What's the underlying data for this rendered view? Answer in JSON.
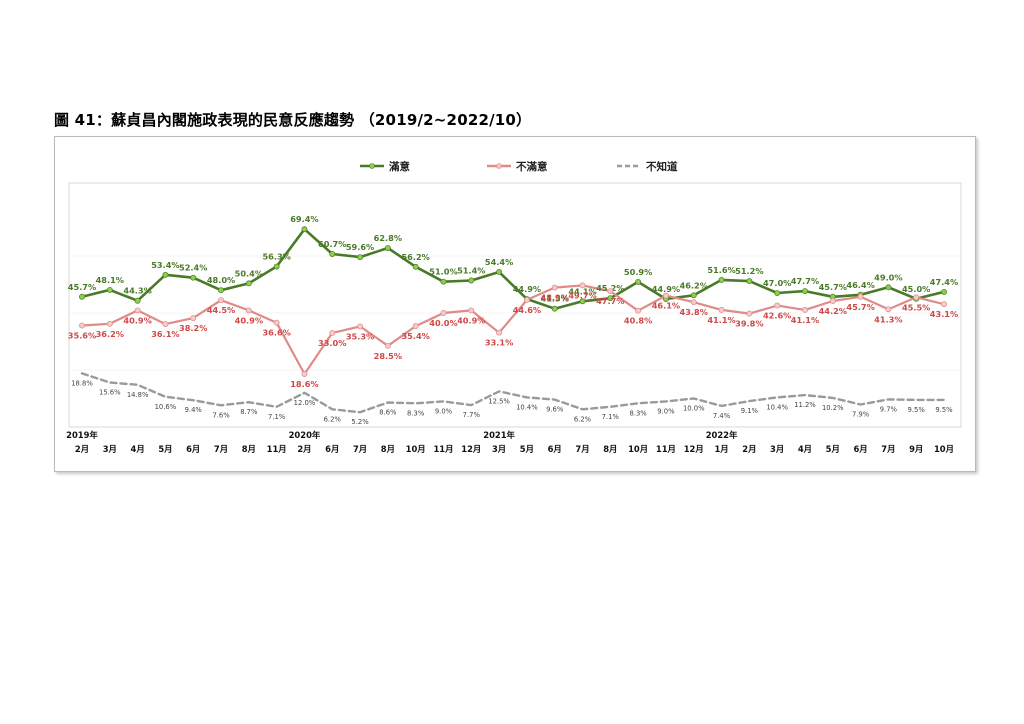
{
  "figure_title": "圖 41：蘇貞昌內閣施政表現的民意反應趨勢 （2019/2~2022/10）",
  "colors": {
    "satisfied": "#4a7a28",
    "satisfied_marker": "#8cd04a",
    "dissatisfied": "#e08a8a",
    "dissatisfied_label": "#d04848",
    "unknown": "#9a9a9a"
  },
  "chart_data": {
    "type": "line",
    "title": "",
    "xlabel": "",
    "ylabel": "",
    "ylim": [
      0,
      80
    ],
    "grid": false,
    "legend": "top",
    "categories": [
      "2月",
      "3月",
      "4月",
      "5月",
      "6月",
      "7月",
      "8月",
      "11月",
      "2月",
      "6月",
      "7月",
      "8月",
      "10月",
      "11月",
      "12月",
      "3月",
      "5月",
      "6月",
      "7月",
      "8月",
      "10月",
      "11月",
      "12月",
      "1月",
      "2月",
      "3月",
      "4月",
      "5月",
      "6月",
      "7月",
      "9月",
      "10月"
    ],
    "year_labels": [
      {
        "index": 0,
        "label": "2019年"
      },
      {
        "index": 8,
        "label": "2020年"
      },
      {
        "index": 15,
        "label": "2021年"
      },
      {
        "index": 23,
        "label": "2022年"
      }
    ],
    "series": [
      {
        "name": "滿意",
        "color": "#4a7a28",
        "values": [
          45.7,
          48.1,
          44.3,
          53.4,
          52.4,
          48.0,
          50.4,
          56.3,
          69.4,
          60.7,
          59.6,
          62.8,
          56.2,
          51.0,
          51.4,
          54.4,
          44.9,
          41.5,
          44.1,
          45.2,
          50.9,
          44.9,
          46.2,
          51.6,
          51.2,
          47.0,
          47.7,
          45.7,
          46.4,
          49.0,
          45.0,
          47.4
        ],
        "labels": [
          "45.7%",
          "48.1%",
          "44.3%",
          "53.4%",
          "52.4%",
          "48.0%",
          "50.4%",
          "56.3%",
          "69.4%",
          "60.7%",
          "59.6%",
          "62.8%",
          "56.2%",
          "51.0%",
          "51.4%",
          "54.4%",
          "44.9%",
          "41.5%",
          "44.1%",
          "45.2%",
          "50.9%",
          "44.9%",
          "46.2%",
          "51.6%",
          "51.2%",
          "47.0%",
          "47.7%",
          "45.7%",
          "46.4%",
          "49.0%",
          "45.0%",
          "47.4%"
        ]
      },
      {
        "name": "不滿意",
        "color": "#e08a8a",
        "values": [
          35.6,
          36.2,
          40.9,
          36.1,
          38.2,
          44.5,
          40.9,
          36.6,
          18.6,
          33.0,
          35.3,
          28.5,
          35.4,
          40.0,
          40.9,
          33.1,
          44.6,
          48.9,
          49.7,
          47.7,
          40.8,
          46.1,
          43.8,
          41.1,
          39.8,
          42.6,
          41.1,
          44.2,
          45.7,
          41.3,
          45.5,
          43.1
        ],
        "labels": [
          "35.6%",
          "36.2%",
          "40.9%",
          "36.1%",
          "38.2%",
          "44.5%",
          "40.9%",
          "36.6%",
          "18.6%",
          "33.0%",
          "35.3%",
          "28.5%",
          "35.4%",
          "40.0%",
          "40.9%",
          "33.1%",
          "44.6%",
          "48.9%",
          "49.7%",
          "47.7%",
          "40.8%",
          "46.1%",
          "43.8%",
          "41.1%",
          "39.8%",
          "42.6%",
          "41.1%",
          "44.2%",
          "45.7%",
          "41.3%",
          "45.5%",
          "43.1%"
        ]
      },
      {
        "name": "不知道",
        "color": "#9a9a9a",
        "values": [
          18.8,
          15.6,
          14.8,
          10.6,
          9.4,
          7.6,
          8.7,
          7.1,
          12.0,
          6.2,
          5.2,
          8.6,
          8.3,
          9.0,
          7.7,
          12.5,
          10.4,
          9.6,
          6.2,
          7.1,
          8.3,
          9.0,
          10.0,
          7.4,
          9.1,
          10.4,
          11.2,
          10.2,
          7.9,
          9.7,
          9.5,
          9.5
        ],
        "labels": [
          "18.8%",
          "15.6%",
          "14.8%",
          "10.6%",
          "9.4%",
          "7.6%",
          "8.7%",
          "7.1%",
          "12.0%",
          "6.2%",
          "5.2%",
          "8.6%",
          "8.3%",
          "9.0%",
          "7.7%",
          "12.5%",
          "10.4%",
          "9.6%",
          "6.2%",
          "7.1%",
          "8.3%",
          "9.0%",
          "10.0%",
          "7.4%",
          "9.1%",
          "10.4%",
          "11.2%",
          "10.2%",
          "7.9%",
          "9.7%",
          "9.5%",
          "9.5%"
        ]
      }
    ]
  }
}
